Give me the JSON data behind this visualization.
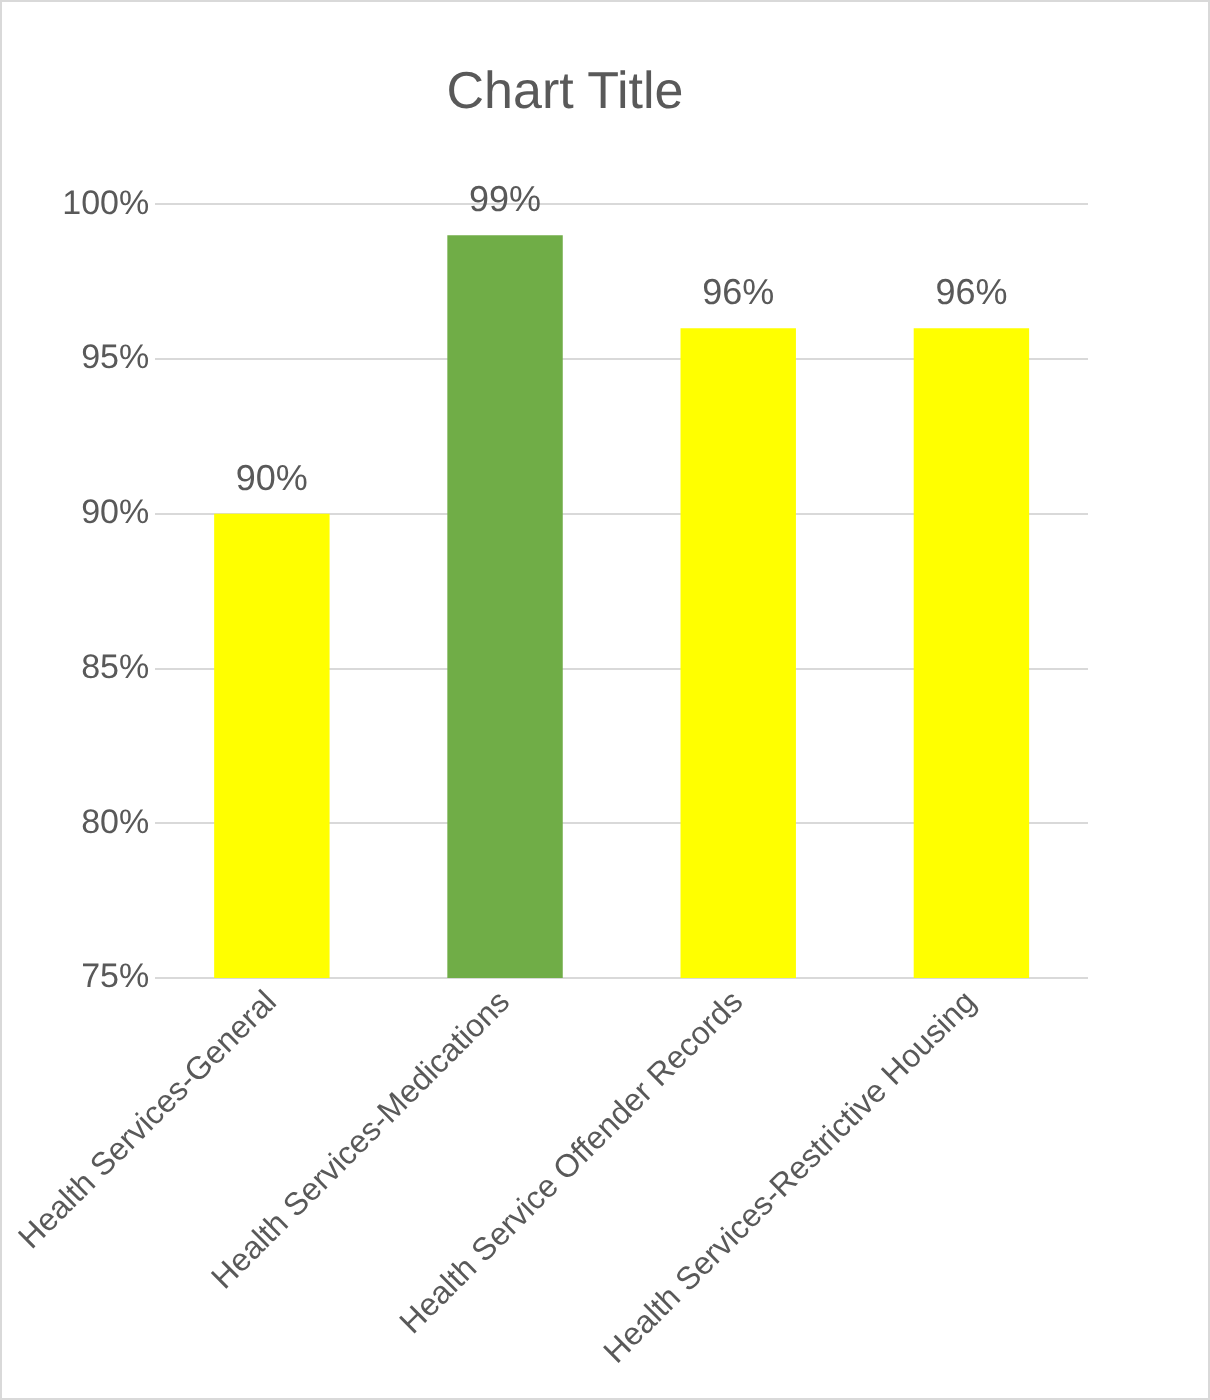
{
  "chart_data": {
    "type": "bar",
    "title": "Chart Title",
    "categories": [
      "Health Services-General",
      "Health Services-Medications",
      "Health Service Offender Records",
      "Health Services-Restrictive Housing"
    ],
    "values": [
      90,
      99,
      96,
      96
    ],
    "colors": [
      "#ffff00",
      "#70ad47",
      "#ffff00",
      "#ffff00"
    ],
    "value_labels": [
      "90%",
      "99%",
      "96%",
      "96%"
    ],
    "ylim": [
      75,
      100
    ],
    "yticks": [
      {
        "value": 75,
        "label": "75%"
      },
      {
        "value": 80,
        "label": "80%"
      },
      {
        "value": 85,
        "label": "85%"
      },
      {
        "value": 90,
        "label": "90%"
      },
      {
        "value": 95,
        "label": "95%"
      },
      {
        "value": 100,
        "label": "100%"
      }
    ],
    "grid": "y",
    "legend": false
  }
}
